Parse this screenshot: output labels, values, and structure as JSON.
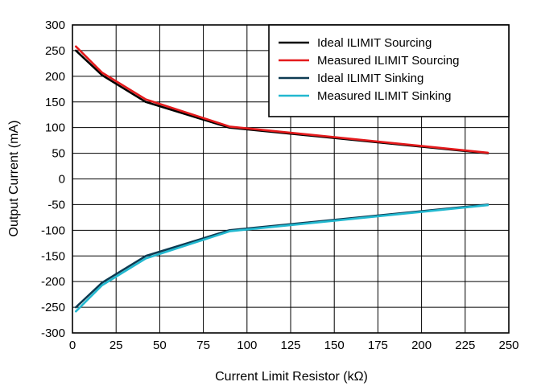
{
  "chart_data": {
    "type": "line",
    "title": "",
    "xlabel": "Current Limit Resistor (kΩ)",
    "ylabel": "Output Current (mA)",
    "xlim": [
      0,
      250
    ],
    "ylim": [
      -300,
      300
    ],
    "xticks": [
      "0",
      "25",
      "50",
      "75",
      "100",
      "125",
      "150",
      "175",
      "200",
      "225",
      "250"
    ],
    "yticks": [
      "300",
      "250",
      "200",
      "150",
      "100",
      "50",
      "0",
      "-50",
      "-100",
      "-150",
      "-200",
      "-250",
      "-300"
    ],
    "grid": true,
    "legend_position": "top-right",
    "series": [
      {
        "name": "Ideal ILIMIT Sourcing",
        "color": "#000000",
        "x": [
          2,
          17,
          42,
          90,
          238
        ],
        "y": [
          250,
          202,
          150,
          100,
          50
        ]
      },
      {
        "name": "Measured ILIMIT Sourcing",
        "color": "#e41a1c",
        "x": [
          2,
          17,
          42,
          90,
          238
        ],
        "y": [
          258,
          207,
          155,
          102,
          51
        ]
      },
      {
        "name": "Ideal ILIMIT Sinking",
        "color": "#0d3b52",
        "x": [
          2,
          17,
          42,
          90,
          238
        ],
        "y": [
          -250,
          -202,
          -150,
          -100,
          -50
        ]
      },
      {
        "name": "Measured ILIMIT Sinking",
        "color": "#22b8cf",
        "x": [
          2,
          17,
          42,
          90,
          238
        ],
        "y": [
          -258,
          -207,
          -155,
          -102,
          -51
        ]
      }
    ]
  }
}
